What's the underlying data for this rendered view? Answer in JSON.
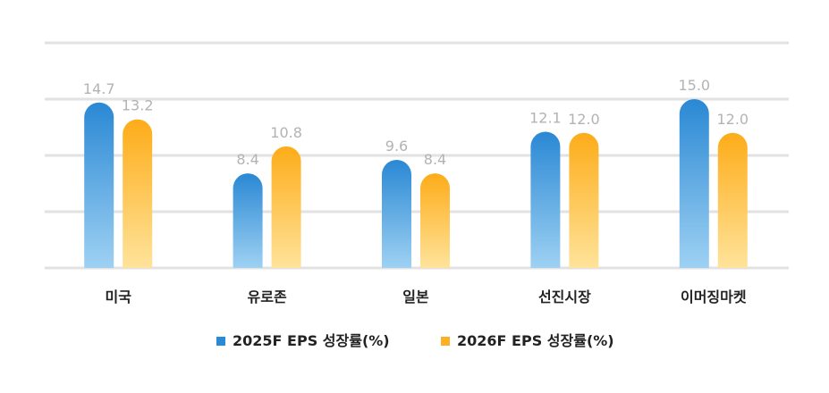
{
  "chart_data": {
    "type": "bar",
    "categories": [
      "미국",
      "유로존",
      "일본",
      "선진시장",
      "이머징마켓"
    ],
    "series": [
      {
        "name": "2025F EPS 성장률(%)",
        "values": [
          14.7,
          8.4,
          9.6,
          12.1,
          15.0
        ],
        "value_labels": [
          "14.7",
          "8.4",
          "9.6",
          "12.1",
          "15.0"
        ],
        "color": "#2a8ad6"
      },
      {
        "name": "2026F EPS 성장률(%)",
        "values": [
          13.2,
          10.8,
          8.4,
          12.0,
          12.0
        ],
        "value_labels": [
          "13.2",
          "10.8",
          "8.4",
          "12.0",
          "12.0"
        ],
        "color": "#fdb022"
      }
    ],
    "ylim": [
      0,
      20
    ],
    "grid": true,
    "legend_position": "bottom"
  }
}
